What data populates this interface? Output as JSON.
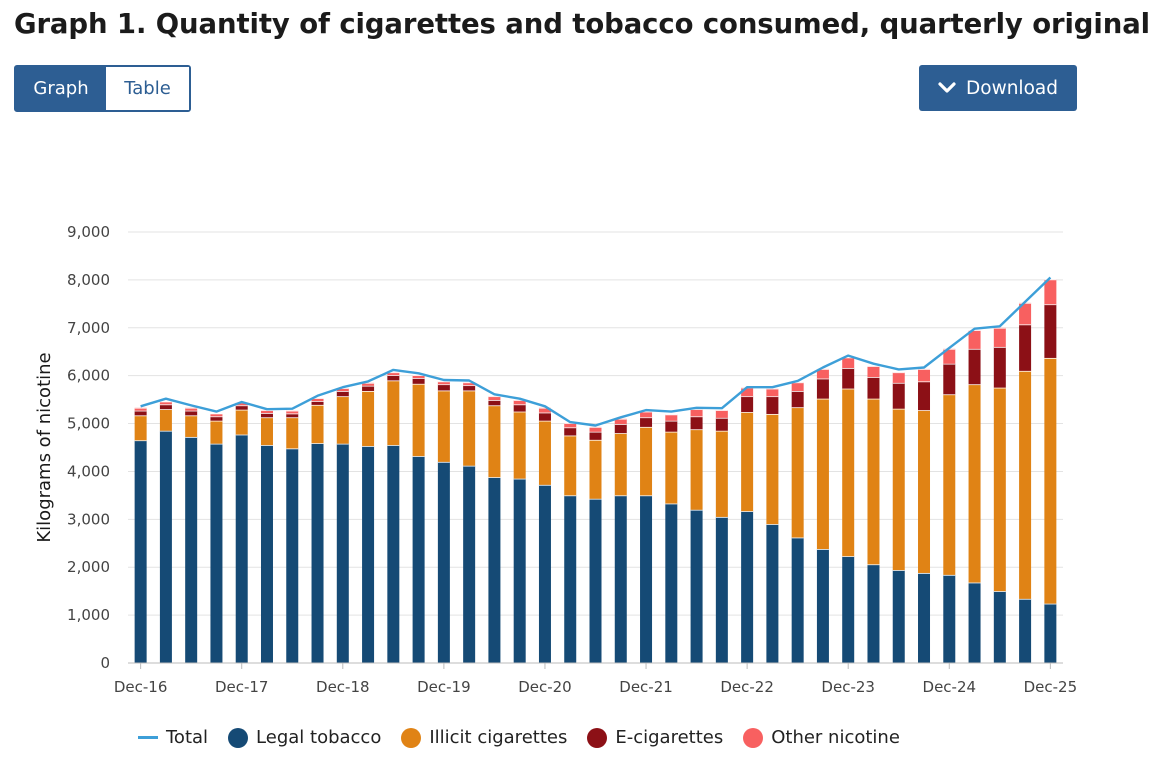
{
  "page": {
    "title": "Graph 1. Quantity of cigarettes and tobacco consumed, quarterly original"
  },
  "controls": {
    "graph_label": "Graph",
    "table_label": "Table",
    "download_label": "Download",
    "download_icon": "chevron-down-icon"
  },
  "colors": {
    "legal": "#154a75",
    "illicit": "#e08315",
    "ecig": "#8c1016",
    "other": "#f86060",
    "total": "#3d9fd8",
    "accent": "#2d5e93"
  },
  "legend": [
    {
      "key": "total",
      "label": "Total"
    },
    {
      "key": "legal",
      "label": "Legal tobacco"
    },
    {
      "key": "illicit",
      "label": "Illicit cigarettes"
    },
    {
      "key": "ecig",
      "label": "E-cigarettes"
    },
    {
      "key": "other",
      "label": "Other nicotine"
    }
  ],
  "chart_data": {
    "type": "bar",
    "stacked": true,
    "title": "Graph 1. Quantity of cigarettes and tobacco consumed, quarterly original",
    "xlabel": "",
    "ylabel": "Kilograms of nicotine",
    "ylim": [
      0,
      9000
    ],
    "yticks": [
      0,
      1000,
      2000,
      3000,
      4000,
      5000,
      6000,
      7000,
      8000,
      9000
    ],
    "ytick_labels": [
      "0",
      "1,000",
      "2,000",
      "3,000",
      "4,000",
      "5,000",
      "6,000",
      "7,000",
      "8,000",
      "9,000"
    ],
    "grid": true,
    "legend_position": "bottom",
    "categories": [
      "Dec-16",
      "Mar-17",
      "Jun-17",
      "Sep-17",
      "Dec-17",
      "Mar-18",
      "Jun-18",
      "Sep-18",
      "Dec-18",
      "Mar-19",
      "Jun-19",
      "Sep-19",
      "Dec-19",
      "Mar-20",
      "Jun-20",
      "Sep-20",
      "Dec-20",
      "Mar-21",
      "Jun-21",
      "Sep-21",
      "Dec-21",
      "Mar-22",
      "Jun-22",
      "Sep-22",
      "Dec-22",
      "Mar-23",
      "Jun-23",
      "Sep-23",
      "Dec-23",
      "Mar-24",
      "Jun-24",
      "Sep-24",
      "Dec-24",
      "Mar-25",
      "Jun-25",
      "Sep-25",
      "Dec-25"
    ],
    "xtick_labels": [
      "Dec-16",
      "Dec-17",
      "Dec-18",
      "Dec-19",
      "Dec-20",
      "Dec-21",
      "Dec-22",
      "Dec-23",
      "Dec-24",
      "Dec-25"
    ],
    "series": [
      {
        "name": "Legal tobacco",
        "values": [
          4650,
          4850,
          4720,
          4580,
          4770,
          4550,
          4480,
          4590,
          4580,
          4530,
          4550,
          4320,
          4200,
          4120,
          3880,
          3850,
          3720,
          3500,
          3430,
          3500,
          3500,
          3330,
          3200,
          3050,
          3170,
          2900,
          2620,
          2380,
          2230,
          2060,
          1940,
          1880,
          1840,
          1680,
          1500,
          1340,
          1240
        ]
      },
      {
        "name": "Illicit cigarettes",
        "values": [
          520,
          450,
          450,
          480,
          520,
          580,
          650,
          800,
          990,
          1150,
          1350,
          1510,
          1490,
          1570,
          1500,
          1400,
          1340,
          1250,
          1230,
          1300,
          1430,
          1500,
          1680,
          1800,
          2070,
          2300,
          2720,
          3140,
          3500,
          3460,
          3370,
          3400,
          3770,
          4140,
          4250,
          4760,
          5130
        ]
      },
      {
        "name": "E-cigarettes",
        "values": [
          100,
          100,
          100,
          90,
          90,
          90,
          80,
          80,
          110,
          110,
          110,
          120,
          130,
          110,
          110,
          150,
          170,
          170,
          170,
          190,
          200,
          230,
          270,
          270,
          330,
          370,
          340,
          420,
          430,
          450,
          540,
          600,
          640,
          740,
          850,
          970,
          1120
        ]
      },
      {
        "name": "Other nicotine",
        "values": [
          60,
          60,
          60,
          60,
          60,
          60,
          60,
          60,
          60,
          60,
          60,
          60,
          60,
          60,
          80,
          90,
          100,
          90,
          100,
          110,
          120,
          130,
          150,
          160,
          180,
          160,
          180,
          200,
          220,
          230,
          220,
          260,
          310,
          390,
          400,
          450,
          520
        ]
      },
      {
        "name": "Total",
        "values": [
          5360,
          5520,
          5380,
          5250,
          5450,
          5300,
          5310,
          5580,
          5760,
          5880,
          6120,
          6050,
          5910,
          5900,
          5610,
          5520,
          5360,
          5030,
          4960,
          5130,
          5280,
          5250,
          5330,
          5320,
          5760,
          5760,
          5890,
          6170,
          6420,
          6250,
          6130,
          6170,
          6580,
          6980,
          7030,
          7540,
          8050
        ]
      }
    ]
  }
}
